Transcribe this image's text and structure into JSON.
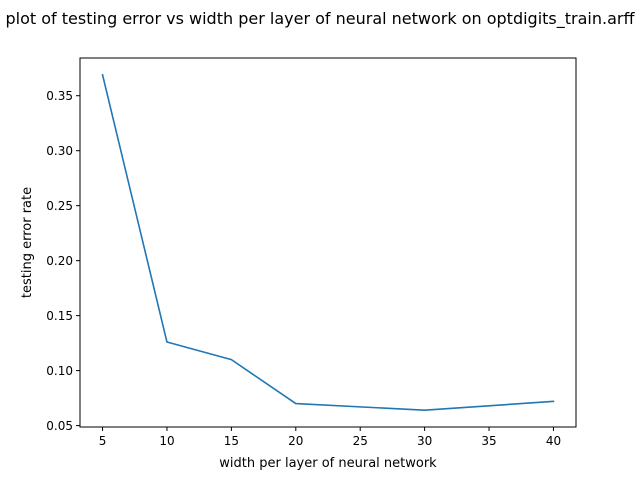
{
  "chart_data": {
    "type": "line",
    "title": "plot of testing error vs width per layer of neural network on optdigits_train.arff",
    "xlabel": "width per layer of neural network",
    "ylabel": "testing error rate",
    "x": [
      5,
      10,
      15,
      20,
      30,
      40
    ],
    "series": [
      {
        "values": [
          0.369,
          0.126,
          0.11,
          0.07,
          0.064,
          0.072
        ],
        "color": "#1f77b4"
      }
    ],
    "xlim": [
      3.25,
      41.75
    ],
    "ylim": [
      0.0487,
      0.3843
    ],
    "xticks": [
      5,
      10,
      15,
      20,
      25,
      30,
      35,
      40
    ],
    "xtick_labels": [
      "5",
      "10",
      "15",
      "20",
      "25",
      "30",
      "35",
      "40"
    ],
    "yticks": [
      0.05,
      0.1,
      0.15,
      0.2,
      0.25,
      0.3,
      0.35
    ],
    "ytick_labels": [
      "0.05",
      "0.10",
      "0.15",
      "0.20",
      "0.25",
      "0.30",
      "0.35"
    ],
    "grid": false,
    "legend": "none"
  }
}
